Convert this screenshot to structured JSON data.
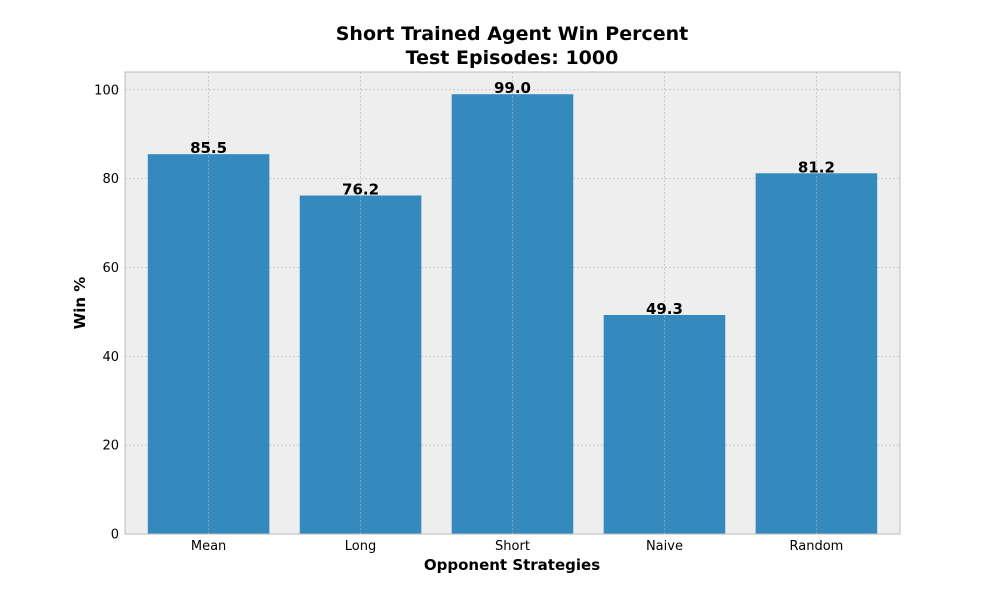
{
  "chart_data": {
    "type": "bar",
    "title": "Short Trained Agent Win Percent",
    "subtitle": "Test Episodes: 1000",
    "xlabel": "Opponent Strategies",
    "ylabel": "Win %",
    "categories": [
      "Mean",
      "Long",
      "Short",
      "Naive",
      "Random"
    ],
    "values": [
      85.5,
      76.2,
      99.0,
      49.3,
      81.2
    ],
    "value_labels": [
      "85.5",
      "76.2",
      "99.0",
      "49.3",
      "81.2"
    ],
    "ylim": [
      0,
      104
    ],
    "yticks": [
      0,
      20,
      40,
      60,
      80,
      100
    ],
    "grid": true,
    "bar_color": "#348abd",
    "background_color": "#eeeeee",
    "grid_color": "#b2b2b2"
  }
}
